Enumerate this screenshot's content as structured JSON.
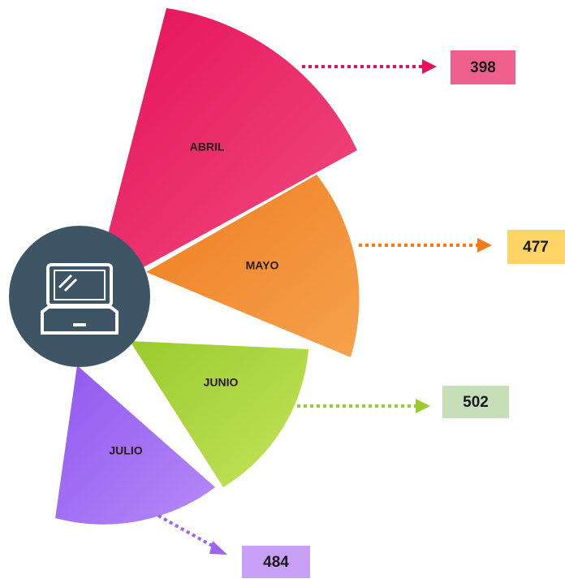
{
  "items": [
    {
      "label": "ABRIL",
      "value": 398
    },
    {
      "label": "MAYO",
      "value": 477
    },
    {
      "label": "JUNIO",
      "value": 502
    },
    {
      "label": "JULIO",
      "value": 484
    }
  ]
}
